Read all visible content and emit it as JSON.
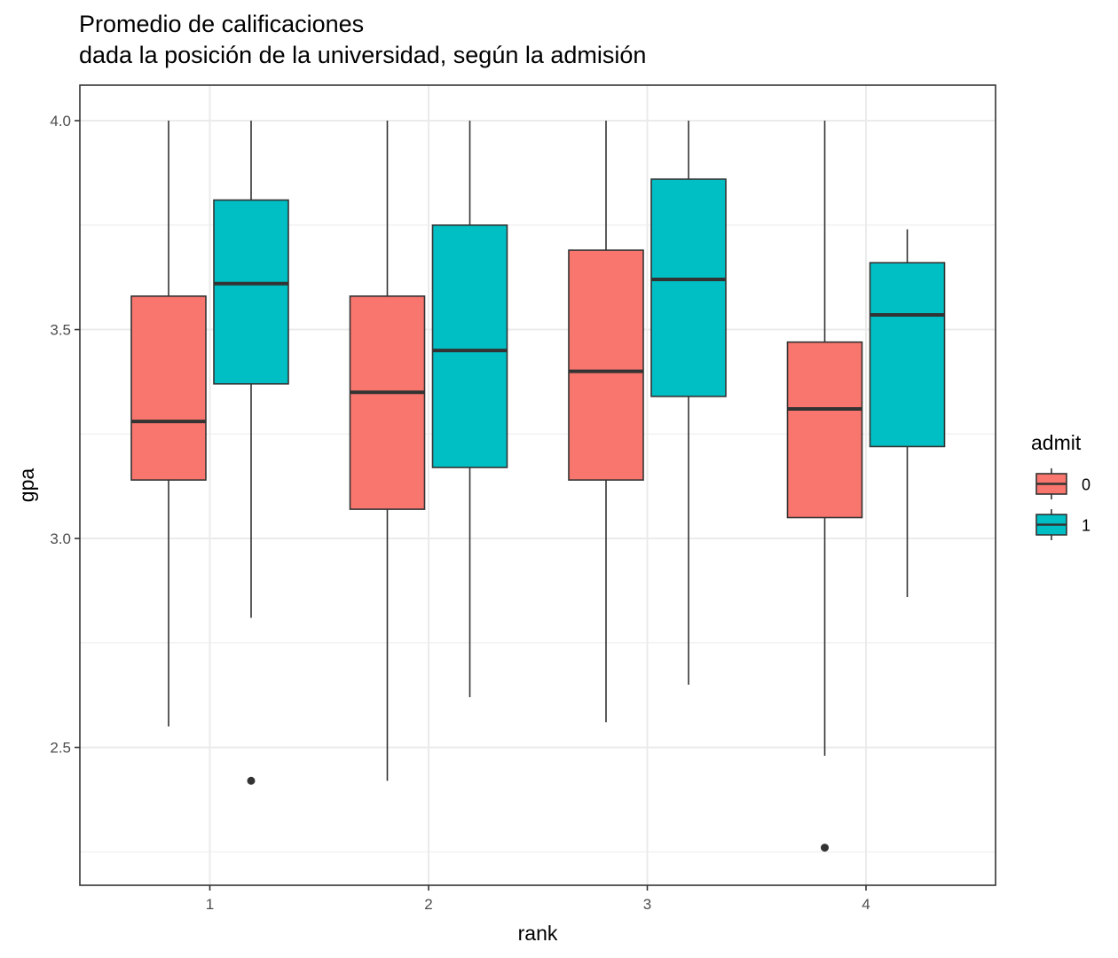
{
  "chart_data": {
    "type": "boxplot",
    "title": "Promedio de calificaciones",
    "subtitle": "dada la posición de la universidad, según la admisión",
    "xlabel": "rank",
    "ylabel": "gpa",
    "categories": [
      "1",
      "2",
      "3",
      "4"
    ],
    "ylim": [
      2.17,
      4.085
    ],
    "yticks": [
      2.5,
      3.0,
      3.5,
      4.0
    ],
    "ytick_labels": [
      "2.5",
      "3.0",
      "3.5",
      "4.0"
    ],
    "grid": true,
    "legend": {
      "title": "admit",
      "position": "right",
      "entries": [
        "0",
        "1"
      ]
    },
    "series": [
      {
        "name": "0",
        "color": "#F8766D",
        "boxes": [
          {
            "category": "1",
            "min": 2.55,
            "q1": 3.14,
            "median": 3.28,
            "q3": 3.58,
            "max": 4.0,
            "outliers": []
          },
          {
            "category": "2",
            "min": 2.42,
            "q1": 3.07,
            "median": 3.35,
            "q3": 3.58,
            "max": 4.0,
            "outliers": []
          },
          {
            "category": "3",
            "min": 2.56,
            "q1": 3.14,
            "median": 3.4,
            "q3": 3.69,
            "max": 4.0,
            "outliers": []
          },
          {
            "category": "4",
            "min": 2.48,
            "q1": 3.05,
            "median": 3.31,
            "q3": 3.47,
            "max": 4.0,
            "outliers": [
              2.26
            ]
          }
        ]
      },
      {
        "name": "1",
        "color": "#00BFC4",
        "boxes": [
          {
            "category": "1",
            "min": 2.81,
            "q1": 3.37,
            "median": 3.61,
            "q3": 3.81,
            "max": 4.0,
            "outliers": [
              2.42
            ]
          },
          {
            "category": "2",
            "min": 2.62,
            "q1": 3.17,
            "median": 3.45,
            "q3": 3.75,
            "max": 4.0,
            "outliers": []
          },
          {
            "category": "3",
            "min": 2.65,
            "q1": 3.34,
            "median": 3.62,
            "q3": 3.86,
            "max": 4.0,
            "outliers": []
          },
          {
            "category": "4",
            "min": 2.86,
            "q1": 3.22,
            "median": 3.535,
            "q3": 3.66,
            "max": 3.74,
            "outliers": []
          }
        ]
      }
    ]
  }
}
